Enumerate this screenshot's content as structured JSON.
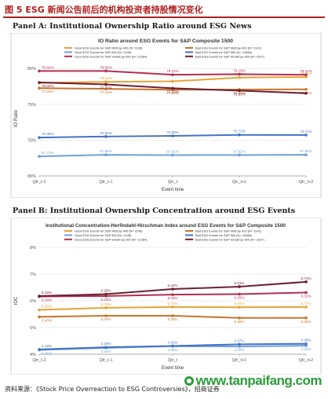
{
  "figure_title": "图 5 ESG 新闻公告前后的机构投资者持股情况变化",
  "source": "资料来源：《Stock Price Overreaction to ESG Controversies》，招商证券",
  "watermark": "www.tanpaifang.com",
  "chart_data": [
    {
      "panel_label": "Panel A: Institutional Ownership Ratio around ESG News",
      "type": "line",
      "title": "IO Ratio around ESG Events  for S&P Composite 1500",
      "xlabel": "Event time",
      "ylabel": "IO Ratio",
      "categories": [
        "Qtr_t-2",
        "Qtr_t-1",
        "Qtr_t",
        "Qtr_t+1",
        "Qtr_t+2"
      ],
      "ylim": [
        65,
        81
      ],
      "yticks": [
        "65%",
        "70%",
        "75%",
        "80%"
      ],
      "grid": true,
      "legend_position": "top",
      "series": [
        {
          "name": "Good ESG Events for S&P MidCap 400 (N= 1196)",
          "color": "#e8a33a",
          "values": [
            77.98,
            78.13,
            78.2,
            78.72,
            78.81
          ],
          "labels": [
            "",
            "78.13%",
            "",
            "78.72%",
            "78.81%"
          ]
        },
        {
          "name": "Bad ESG Events for S&P MidCap 400 (N= 3141)",
          "color": "#c8742c",
          "values": [
            77.25,
            77.15,
            77.03,
            77.05,
            77.08
          ],
          "labels": [
            "77.25%",
            "77.15%",
            "77.03%",
            "77.05%",
            "77.08%"
          ]
        },
        {
          "name": "Good ESG Events for S&P 500 (N= 2145)",
          "color": "#6fa0dc",
          "values": [
            67.73,
            67.95,
            67.91,
            67.92,
            67.95
          ],
          "labels": [
            "67.73%",
            "67.95%",
            "67.91%",
            "67.92%",
            "67.95%"
          ]
        },
        {
          "name": "Bad ESG Events for S&P 500 (N= 10468)",
          "color": "#4472c4",
          "values": [
            70.35,
            70.5,
            70.59,
            70.73,
            70.71
          ],
          "labels": [
            "70.35%",
            "70.50%",
            "70.59%",
            "70.73%",
            "70.71%"
          ]
        },
        {
          "name": "Good ESG Events for S&P SmallCap 600 (N= 12364)",
          "color": "#b03050",
          "values": [
            79.64,
            79.65,
            79.12,
            79.19,
            79.12
          ],
          "labels": [
            "79.64%",
            "79.65%",
            "79.12%",
            "79.19%",
            "79.12%"
          ]
        },
        {
          "name": "Bad ESG Events for S&P SmallCap 600 (N= 3237)",
          "color": "#6e1f33",
          "values": [
            78.04,
            77.77,
            77.23,
            76.91,
            76.54
          ],
          "labels": [
            "78.04%",
            "77.77%",
            "77.23%",
            "76.91%",
            ""
          ]
        }
      ]
    },
    {
      "panel_label": "Panel B: Institutional Ownership Concentration around ESG Events",
      "type": "line",
      "title": "Institutional Concentration-Herfindahl-Hirschman Index around ESG Events  for S&P Composite 1500",
      "xlabel": "Event time",
      "ylabel": "IOC",
      "categories": [
        "Qtr_t-2",
        "Qtr_t-1",
        "Qtr_t",
        "Qtr_t+1",
        "Qtr_t+2"
      ],
      "ylim": [
        4,
        8
      ],
      "yticks": [
        "4%",
        "5%",
        "6%",
        "7%",
        "8%"
      ],
      "grid": true,
      "legend_position": "top",
      "series": [
        {
          "name": "Good ESG Events for S&P MidCap 400 (N= 1196)",
          "color": "#e8a33a",
          "values": [
            5.66,
            5.74,
            5.77,
            5.76,
            5.77
          ],
          "labels": [
            "5.66%",
            "5.74%",
            "5.77%",
            "5.76%",
            "5.77%"
          ]
        },
        {
          "name": "Bad ESG Events for S&P MidCap 400 (N= 3141)",
          "color": "#c8742c",
          "values": [
            5.4,
            5.44,
            5.44,
            5.36,
            5.36
          ],
          "labels": [
            "5.40%",
            "5.44%",
            "5.44%",
            "5.36%",
            "5.36%"
          ]
        },
        {
          "name": "Good ESG Events for S&P 500 (N= 2145)",
          "color": "#6fa0dc",
          "values": [
            4.16,
            4.24,
            4.3,
            4.29,
            4.32
          ],
          "labels": [
            "4.16%",
            "4.24%",
            "4.30%",
            "4.29%",
            "4.32%"
          ]
        },
        {
          "name": "Bad ESG Events for S&P 500 (N= 10468)",
          "color": "#4472c4",
          "values": [
            4.18,
            4.26,
            4.31,
            4.37,
            4.39
          ],
          "labels": [
            "4.18%",
            "4.26%",
            "4.31%",
            "4.37%",
            "4.39%"
          ]
        },
        {
          "name": "Good ESG Events for S&P SmallCap 600 (N= 12364)",
          "color": "#b03050",
          "values": [
            6.16,
            6.18,
            6.23,
            6.25,
            6.31
          ],
          "labels": [
            "6.16%",
            "6.18%",
            "6.23%",
            "6.25%",
            "6.31%"
          ]
        },
        {
          "name": "Bad ESG Events for S&P SmallCap 600 (N= 3237)",
          "color": "#6e1f33",
          "values": [
            6.18,
            6.25,
            6.44,
            6.53,
            6.71
          ],
          "labels": [
            "6.18%",
            "6.25%",
            "6.44%",
            "6.53%",
            "6.71%"
          ]
        }
      ]
    }
  ]
}
